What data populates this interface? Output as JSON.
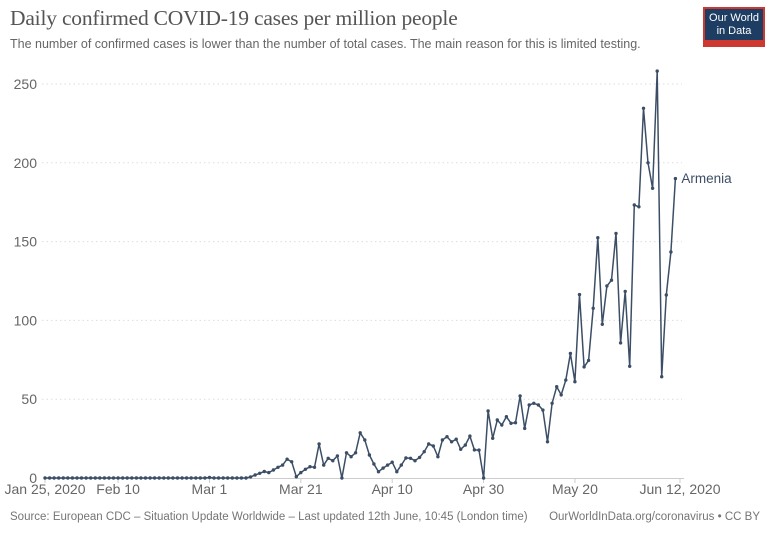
{
  "header": {
    "title": "Daily confirmed COVID-19 cases per million people",
    "subtitle": "The number of confirmed cases is lower than the number of total cases. The main reason for this is limited testing."
  },
  "logo": {
    "line1": "Our World",
    "line2": "in Data",
    "bg_color": "#1d3d63",
    "accent_color": "#cd3830"
  },
  "footer": {
    "source": "Source: European CDC – Situation Update Worldwide – Last updated 12th June, 10:45 (London time)",
    "license": "OurWorldInData.org/coronavirus • CC BY"
  },
  "chart_data": {
    "type": "line",
    "title": "Daily confirmed COVID-19 cases per million people",
    "subtitle": "The number of confirmed cases is lower than the number of total cases. The main reason for this is limited testing.",
    "xlabel": "",
    "ylabel": "",
    "ylim": [
      0,
      250
    ],
    "grid": "dotted-horizontal",
    "legend_position": "end-of-line-label",
    "x_range": [
      "2020-01-25",
      "2020-06-12"
    ],
    "y_ticks": [
      0,
      50,
      100,
      150,
      200,
      250
    ],
    "x_ticks": [
      {
        "label": "Jan 25, 2020",
        "date": "2020-01-25"
      },
      {
        "label": "Feb 10",
        "date": "2020-02-10"
      },
      {
        "label": "Mar 1",
        "date": "2020-03-01"
      },
      {
        "label": "Mar 21",
        "date": "2020-03-21"
      },
      {
        "label": "Apr 10",
        "date": "2020-04-10"
      },
      {
        "label": "Apr 30",
        "date": "2020-04-30"
      },
      {
        "label": "May 20",
        "date": "2020-05-20"
      },
      {
        "label": "Jun 12, 2020",
        "date": "2020-06-12"
      }
    ],
    "colors": {
      "line": "#3C4E66",
      "grid": "#dddddd",
      "axis": "#cccccc",
      "tick_text": "#666666"
    },
    "series": [
      {
        "name": "Armenia",
        "end_label": "Armenia",
        "color": "#3C4E66",
        "points": [
          [
            "2020-01-25",
            0
          ],
          [
            "2020-01-26",
            0
          ],
          [
            "2020-01-27",
            0
          ],
          [
            "2020-01-28",
            0
          ],
          [
            "2020-01-29",
            0
          ],
          [
            "2020-01-30",
            0
          ],
          [
            "2020-01-31",
            0
          ],
          [
            "2020-02-01",
            0
          ],
          [
            "2020-02-02",
            0
          ],
          [
            "2020-02-03",
            0
          ],
          [
            "2020-02-04",
            0
          ],
          [
            "2020-02-05",
            0
          ],
          [
            "2020-02-06",
            0
          ],
          [
            "2020-02-07",
            0
          ],
          [
            "2020-02-08",
            0
          ],
          [
            "2020-02-09",
            0
          ],
          [
            "2020-02-10",
            0
          ],
          [
            "2020-02-11",
            0
          ],
          [
            "2020-02-12",
            0
          ],
          [
            "2020-02-13",
            0
          ],
          [
            "2020-02-14",
            0
          ],
          [
            "2020-02-15",
            0
          ],
          [
            "2020-02-16",
            0
          ],
          [
            "2020-02-17",
            0
          ],
          [
            "2020-02-18",
            0
          ],
          [
            "2020-02-19",
            0
          ],
          [
            "2020-02-20",
            0
          ],
          [
            "2020-02-21",
            0
          ],
          [
            "2020-02-22",
            0
          ],
          [
            "2020-02-23",
            0
          ],
          [
            "2020-02-24",
            0
          ],
          [
            "2020-02-25",
            0
          ],
          [
            "2020-02-26",
            0
          ],
          [
            "2020-02-27",
            0
          ],
          [
            "2020-02-28",
            0
          ],
          [
            "2020-02-29",
            0
          ],
          [
            "2020-03-01",
            0.3
          ],
          [
            "2020-03-02",
            0
          ],
          [
            "2020-03-03",
            0
          ],
          [
            "2020-03-04",
            0
          ],
          [
            "2020-03-05",
            0
          ],
          [
            "2020-03-06",
            0
          ],
          [
            "2020-03-07",
            0
          ],
          [
            "2020-03-08",
            0
          ],
          [
            "2020-03-09",
            0
          ],
          [
            "2020-03-10",
            0.7
          ],
          [
            "2020-03-11",
            1.9
          ],
          [
            "2020-03-12",
            3.0
          ],
          [
            "2020-03-13",
            4.1
          ],
          [
            "2020-03-14",
            3.4
          ],
          [
            "2020-03-15",
            5.1
          ],
          [
            "2020-03-16",
            6.8
          ],
          [
            "2020-03-17",
            8.2
          ],
          [
            "2020-03-18",
            11.9
          ],
          [
            "2020-03-19",
            10.3
          ],
          [
            "2020-03-20",
            0.8
          ],
          [
            "2020-03-21",
            3.4
          ],
          [
            "2020-03-22",
            5.5
          ],
          [
            "2020-03-23",
            7.2
          ],
          [
            "2020-03-24",
            6.8
          ],
          [
            "2020-03-25",
            21.6
          ],
          [
            "2020-03-26",
            8.2
          ],
          [
            "2020-03-27",
            12.5
          ],
          [
            "2020-03-28",
            11.0
          ],
          [
            "2020-03-29",
            14.0
          ],
          [
            "2020-03-30",
            0
          ],
          [
            "2020-03-31",
            16.0
          ],
          [
            "2020-04-01",
            13.5
          ],
          [
            "2020-04-02",
            16.0
          ],
          [
            "2020-04-03",
            28.7
          ],
          [
            "2020-04-04",
            24.1
          ],
          [
            "2020-04-05",
            14.6
          ],
          [
            "2020-04-06",
            8.9
          ],
          [
            "2020-04-07",
            4.0
          ],
          [
            "2020-04-08",
            6.3
          ],
          [
            "2020-04-09",
            8.2
          ],
          [
            "2020-04-10",
            10.0
          ],
          [
            "2020-04-11",
            4.0
          ],
          [
            "2020-04-12",
            8.2
          ],
          [
            "2020-04-13",
            12.7
          ],
          [
            "2020-04-14",
            12.5
          ],
          [
            "2020-04-15",
            11.0
          ],
          [
            "2020-04-16",
            13.1
          ],
          [
            "2020-04-17",
            16.7
          ],
          [
            "2020-04-18",
            21.6
          ],
          [
            "2020-04-19",
            20.3
          ],
          [
            "2020-04-20",
            13.5
          ],
          [
            "2020-04-21",
            24.1
          ],
          [
            "2020-04-22",
            26.2
          ],
          [
            "2020-04-23",
            23.0
          ],
          [
            "2020-04-24",
            24.6
          ],
          [
            "2020-04-25",
            18.2
          ],
          [
            "2020-04-26",
            20.9
          ],
          [
            "2020-04-27",
            26.6
          ],
          [
            "2020-04-28",
            17.8
          ],
          [
            "2020-04-29",
            17.7
          ],
          [
            "2020-04-30",
            0
          ],
          [
            "2020-05-01",
            42.5
          ],
          [
            "2020-05-02",
            25.2
          ],
          [
            "2020-05-03",
            36.8
          ],
          [
            "2020-05-04",
            33.6
          ],
          [
            "2020-05-05",
            38.9
          ],
          [
            "2020-05-06",
            34.7
          ],
          [
            "2020-05-07",
            35.1
          ],
          [
            "2020-05-08",
            52.0
          ],
          [
            "2020-05-09",
            31.5
          ],
          [
            "2020-05-10",
            46.3
          ],
          [
            "2020-05-11",
            47.4
          ],
          [
            "2020-05-12",
            46.3
          ],
          [
            "2020-05-13",
            43.1
          ],
          [
            "2020-05-14",
            23.0
          ],
          [
            "2020-05-15",
            47.4
          ],
          [
            "2020-05-16",
            57.9
          ],
          [
            "2020-05-17",
            52.7
          ],
          [
            "2020-05-18",
            62.1
          ],
          [
            "2020-05-19",
            79.0
          ],
          [
            "2020-05-20",
            61.1
          ],
          [
            "2020-05-21",
            116.4
          ],
          [
            "2020-05-22",
            70.5
          ],
          [
            "2020-05-23",
            74.6
          ],
          [
            "2020-05-24",
            107.7
          ],
          [
            "2020-05-25",
            152.5
          ],
          [
            "2020-05-26",
            97.5
          ],
          [
            "2020-05-27",
            121.8
          ],
          [
            "2020-05-28",
            125.5
          ],
          [
            "2020-05-29",
            155.2
          ],
          [
            "2020-05-30",
            85.7
          ],
          [
            "2020-05-31",
            118.4
          ],
          [
            "2020-06-01",
            70.9
          ],
          [
            "2020-06-02",
            173.2
          ],
          [
            "2020-06-03",
            172.1
          ],
          [
            "2020-06-04",
            234.6
          ],
          [
            "2020-06-05",
            200.0
          ],
          [
            "2020-06-06",
            183.8
          ],
          [
            "2020-06-07",
            258.2
          ],
          [
            "2020-06-08",
            64.3
          ],
          [
            "2020-06-09",
            116.1
          ],
          [
            "2020-06-10",
            143.4
          ],
          [
            "2020-06-11",
            190.0
          ]
        ]
      }
    ]
  }
}
